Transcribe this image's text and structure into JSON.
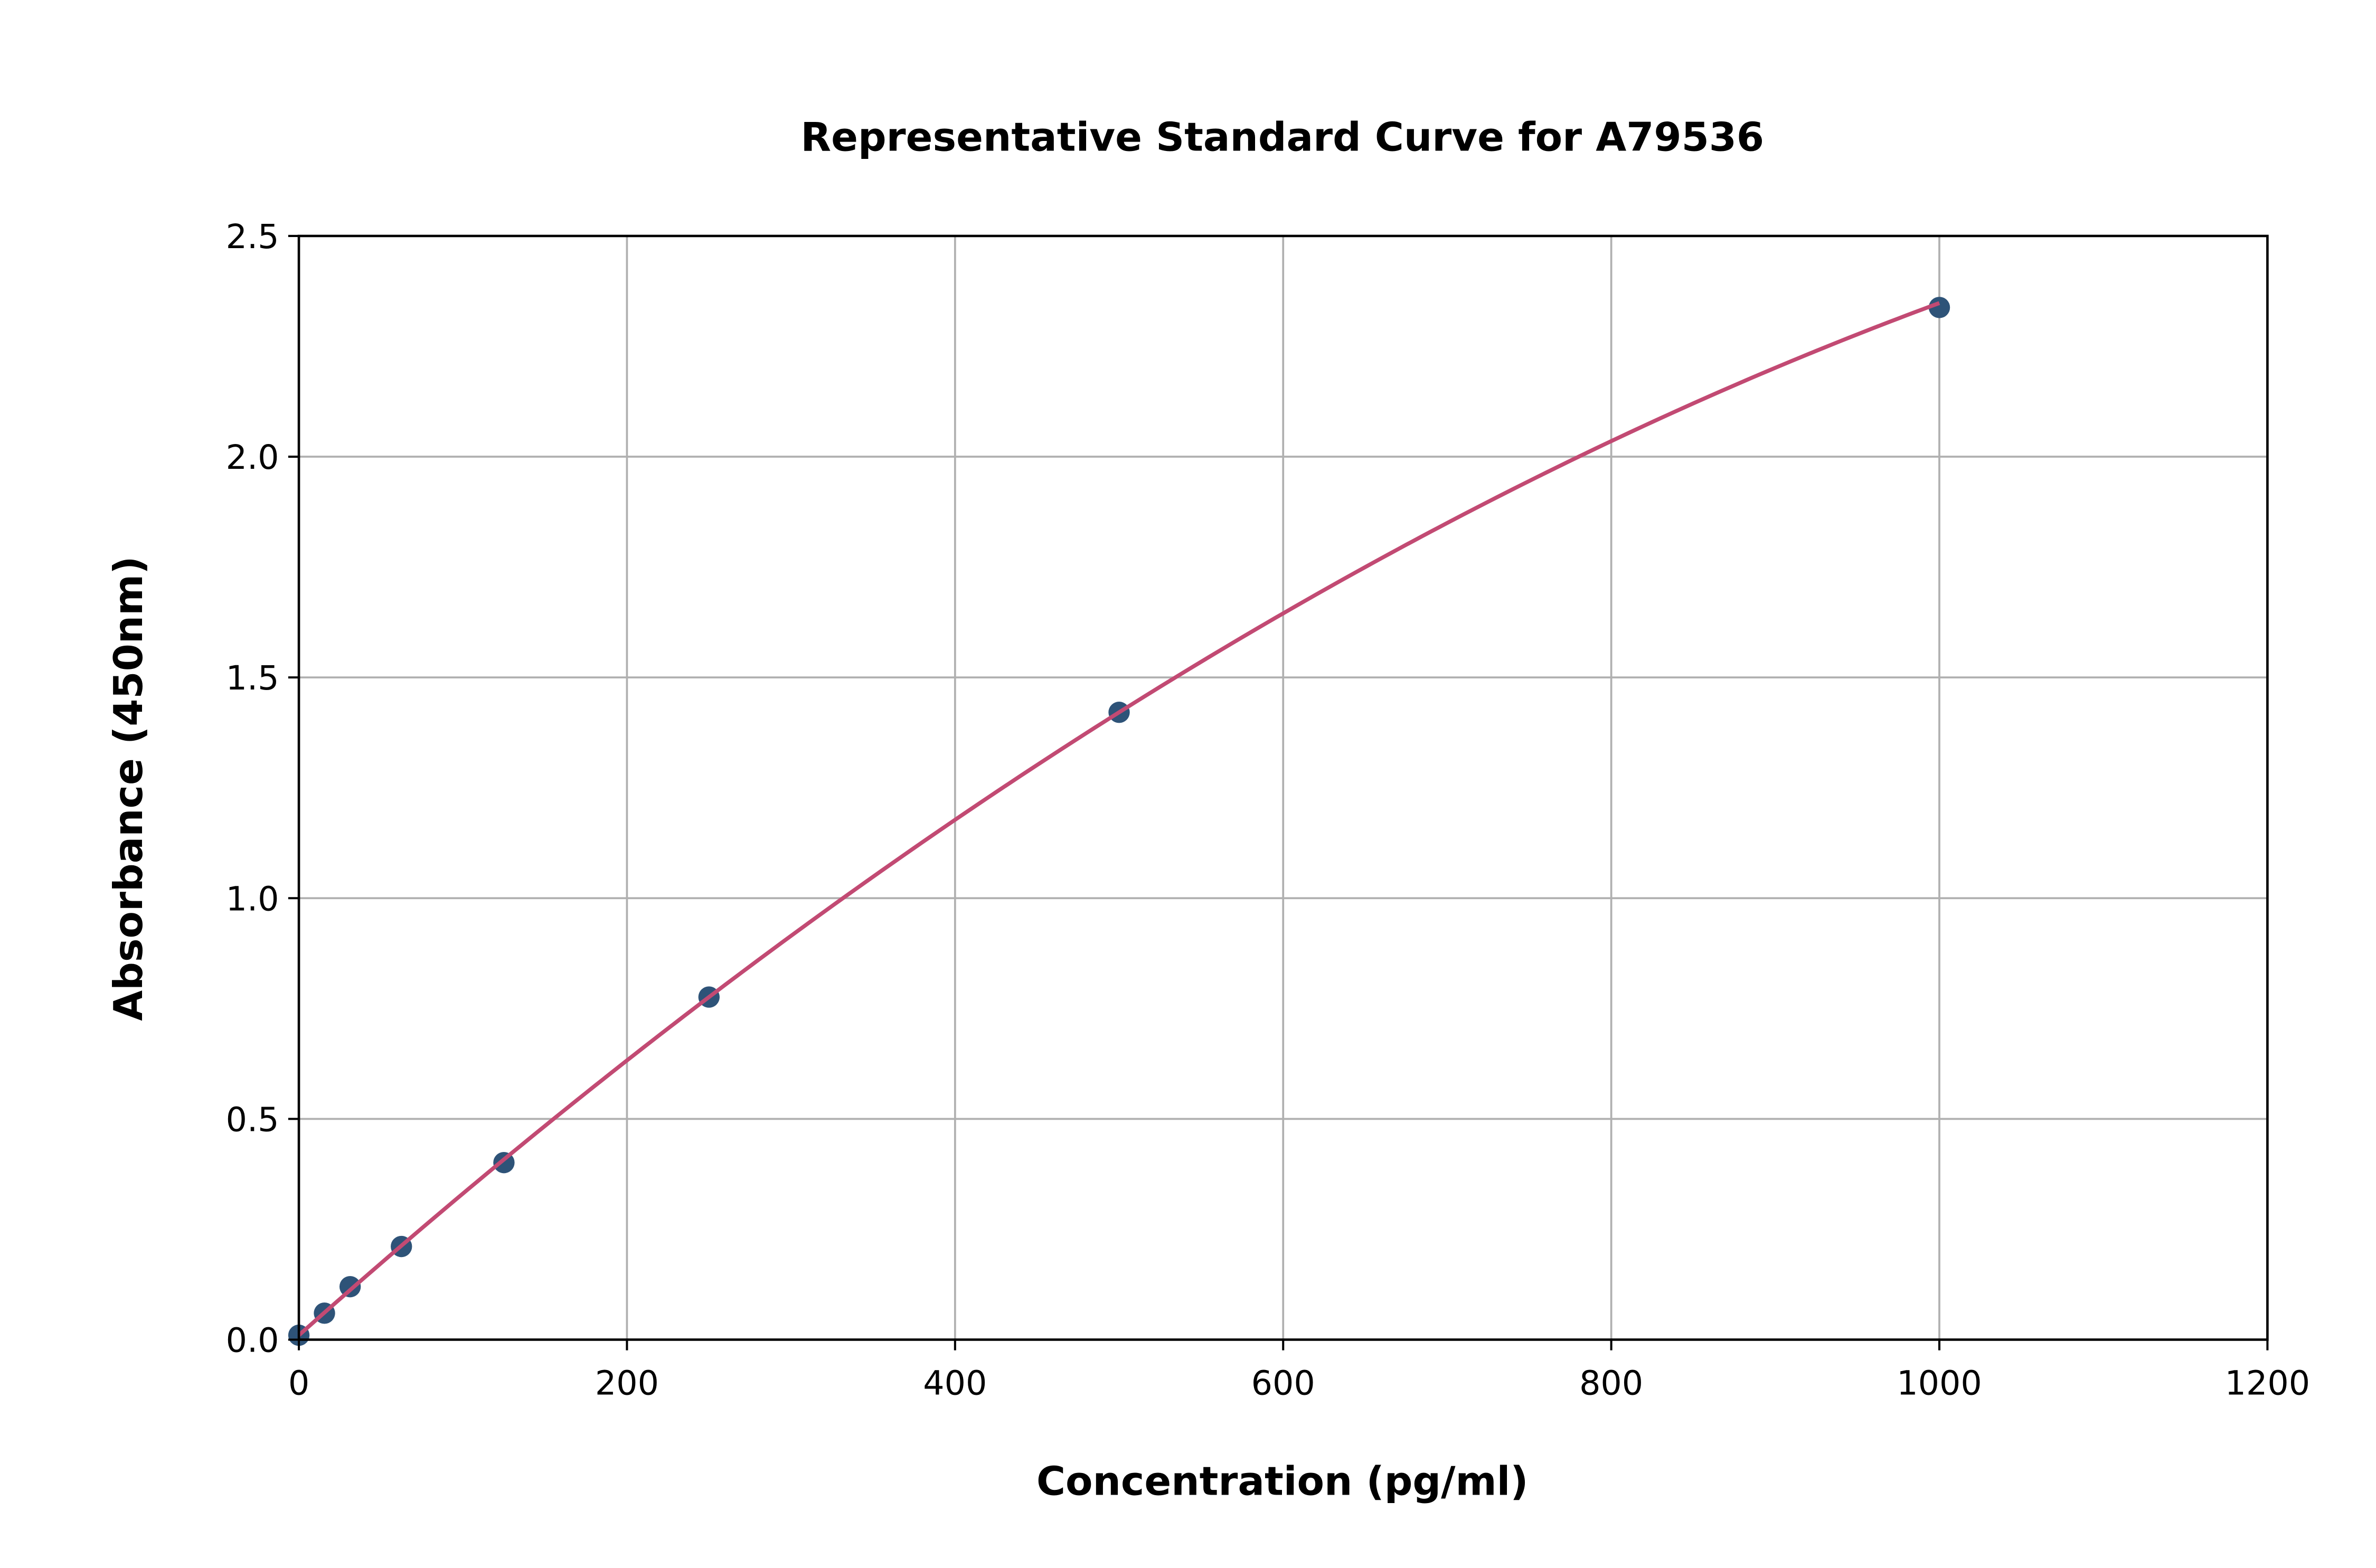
{
  "chart_data": {
    "type": "scatter",
    "title": "Representative Standard Curve for A79536",
    "xlabel": "Concentration (pg/ml)",
    "ylabel": "Absorbance (450nm)",
    "xlim": [
      0,
      1200
    ],
    "ylim": [
      0,
      2.5
    ],
    "xticks": [
      "0",
      "200",
      "400",
      "600",
      "800",
      "1000",
      "1200"
    ],
    "yticks": [
      "0.0",
      "0.5",
      "1.0",
      "1.5",
      "2.0",
      "2.5"
    ],
    "grid": true,
    "points": {
      "x": [
        0,
        15.6,
        31.25,
        62.5,
        125,
        250,
        500,
        1000
      ],
      "y": [
        0.01,
        0.06,
        0.12,
        0.211,
        0.401,
        0.776,
        1.421,
        2.338
      ]
    },
    "fit_line": {
      "type": "line",
      "x_range": [
        0,
        1000
      ]
    },
    "colors": {
      "points": "#2e5378",
      "fit": "#c24a73",
      "grid": "#b0b0b0"
    }
  }
}
